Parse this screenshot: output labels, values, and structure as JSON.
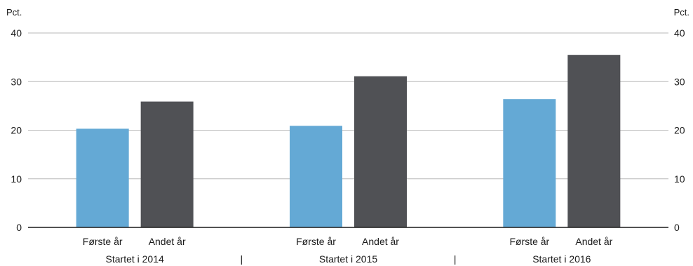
{
  "chart_data": {
    "type": "bar",
    "unit_left": "Pct.",
    "unit_right": "Pct.",
    "ylim": [
      0,
      40
    ],
    "yticks": [
      0,
      10,
      20,
      30,
      40
    ],
    "groups": [
      {
        "label": "Startet i 2014",
        "bars": [
          {
            "label": "Første år",
            "value": 20.3,
            "color": "#64a9d5"
          },
          {
            "label": "Andet år",
            "value": 25.9,
            "color": "#505155"
          }
        ]
      },
      {
        "label": "Startet i 2015",
        "bars": [
          {
            "label": "Første år",
            "value": 20.9,
            "color": "#64a9d5"
          },
          {
            "label": "Andet år",
            "value": 31.1,
            "color": "#505155"
          }
        ]
      },
      {
        "label": "Startet i 2016",
        "bars": [
          {
            "label": "Første år",
            "value": 26.4,
            "color": "#64a9d5"
          },
          {
            "label": "Andet år",
            "value": 35.5,
            "color": "#505155"
          }
        ]
      }
    ],
    "separator": "|",
    "grid": true,
    "gridline_color": "#b8b8b8",
    "axis_color": "#1a1a1a"
  }
}
